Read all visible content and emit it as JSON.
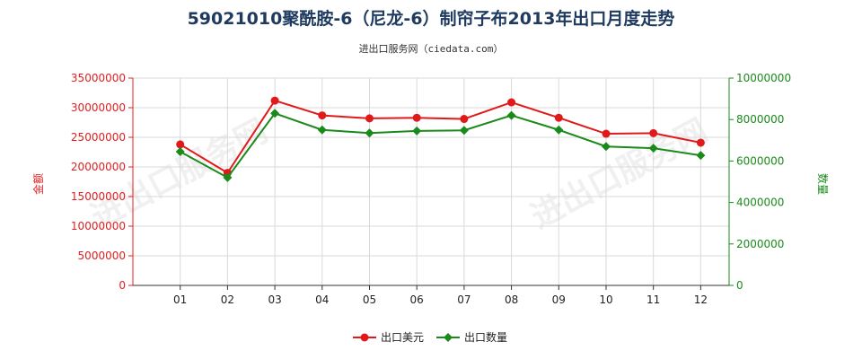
{
  "chart_data": {
    "type": "line",
    "title": "59021010聚酰胺-6（尼龙-6）制帘子布2013年出口月度走势",
    "subtitle": "进出口服务网（ciedata.com）",
    "watermark": "进出口服务网",
    "categories": [
      "01",
      "02",
      "03",
      "04",
      "05",
      "06",
      "07",
      "08",
      "09",
      "10",
      "11",
      "12"
    ],
    "y_left": {
      "label": "金额",
      "ylim": [
        0,
        35000000
      ],
      "ticks": [
        0,
        5000000,
        10000000,
        15000000,
        20000000,
        25000000,
        30000000,
        35000000
      ],
      "tick_labels": [
        "0",
        "5000000",
        "10000000",
        "15000000",
        "20000000",
        "25000000",
        "30000000",
        "35000000"
      ],
      "color": "#e02020"
    },
    "y_right": {
      "label": "数量",
      "ylim": [
        0,
        10000000
      ],
      "ticks": [
        0,
        2000000,
        4000000,
        6000000,
        8000000,
        10000000
      ],
      "tick_labels": [
        "0",
        "2000000",
        "4000000",
        "6000000",
        "8000000",
        "10000000"
      ],
      "color": "#1a8a1a"
    },
    "series": [
      {
        "name": "出口美元",
        "axis": "left",
        "color": "#e01a1a",
        "marker": "circle",
        "values": [
          23800000,
          19000000,
          31200000,
          28700000,
          28200000,
          28300000,
          28100000,
          30900000,
          28300000,
          25600000,
          25700000,
          24100000
        ]
      },
      {
        "name": "出口数量",
        "axis": "right",
        "color": "#1a8a1a",
        "marker": "diamond",
        "values": [
          6450000,
          5200000,
          8300000,
          7500000,
          7350000,
          7450000,
          7480000,
          8200000,
          7500000,
          6700000,
          6620000,
          6270000
        ]
      }
    ],
    "grid": true,
    "legend_position": "bottom-center"
  }
}
